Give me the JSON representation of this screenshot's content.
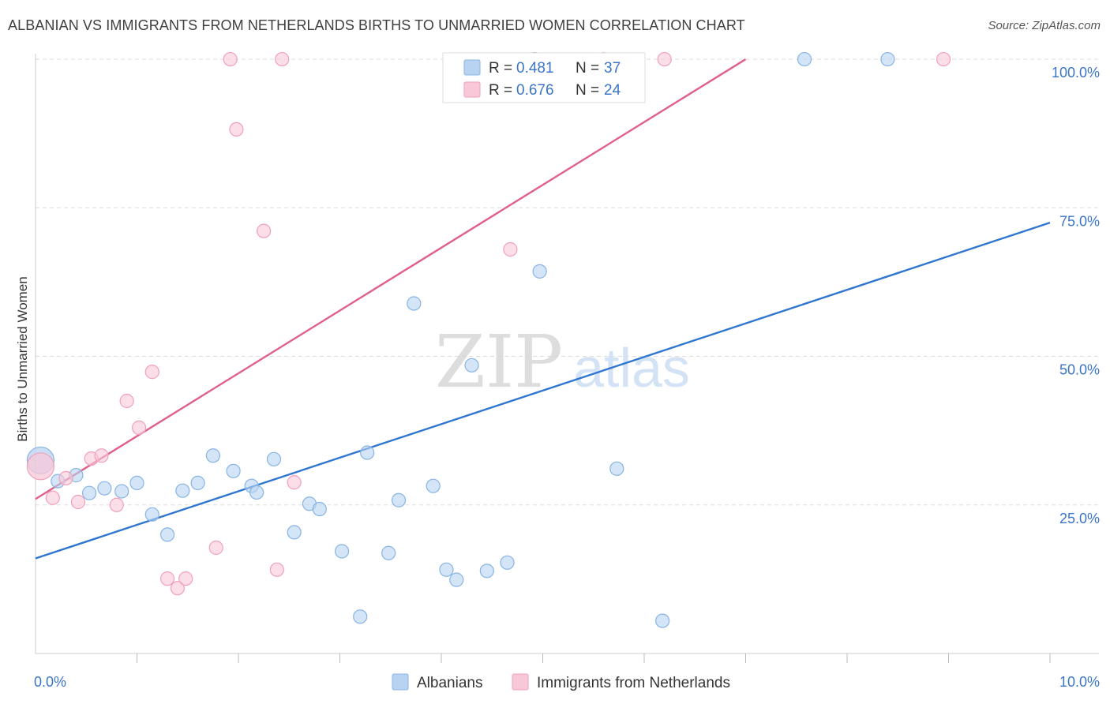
{
  "title": "ALBANIAN VS IMMIGRANTS FROM NETHERLANDS BIRTHS TO UNMARRIED WOMEN CORRELATION CHART",
  "source": "Source: ZipAtlas.com",
  "watermark": {
    "zip": "ZIP",
    "atlas": "atlas"
  },
  "colors": {
    "blue_fill": "#b8d3f2",
    "blue_stroke": "#88b4e4",
    "blue_line": "#2f76d0",
    "pink_fill": "#f8c8d8",
    "pink_stroke": "#f0a0ba",
    "pink_line": "#e0608a",
    "axis_label": "#3b75c8",
    "grid": "#dddddd",
    "text": "#333333"
  },
  "legend_stats": [
    {
      "series": "Albanians",
      "r_label": "R =",
      "r_value": "0.481",
      "n_label": "N =",
      "n_value": "37",
      "color": "blue"
    },
    {
      "series": "Immigrants from Netherlands",
      "r_label": "R =",
      "r_value": "0.676",
      "n_label": "N =",
      "n_value": "24",
      "color": "pink"
    }
  ],
  "chart_data": {
    "type": "scatter",
    "title": "ALBANIAN VS IMMIGRANTS FROM NETHERLANDS BIRTHS TO UNMARRIED WOMEN CORRELATION CHART",
    "xlabel": "",
    "ylabel": "Births to Unmarried Women",
    "xlim": [
      0,
      10
    ],
    "ylim": [
      0,
      102
    ],
    "x_tick_labels": [
      {
        "value": 0,
        "label": "0.0%"
      },
      {
        "value": 10,
        "label": "10.0%"
      }
    ],
    "y_tick_labels": [
      {
        "value": 25,
        "label": "25.0%"
      },
      {
        "value": 50,
        "label": "50.0%"
      },
      {
        "value": 75,
        "label": "75.0%"
      },
      {
        "value": 100,
        "label": "100.0%"
      }
    ],
    "y_gridlines": [
      25,
      50,
      75,
      100
    ],
    "x_minor_ticks": [
      1,
      2,
      3,
      4,
      5,
      6,
      7,
      8,
      9,
      10
    ],
    "legend_position": "bottom-center",
    "series": [
      {
        "name": "Albanians",
        "color": "blue",
        "trendline": {
          "x": [
            0,
            10
          ],
          "y": [
            16.0,
            72.5
          ]
        },
        "points": [
          {
            "x": 0.05,
            "y": 32.5,
            "large": true
          },
          {
            "x": 0.22,
            "y": 29.0
          },
          {
            "x": 0.4,
            "y": 30.0
          },
          {
            "x": 0.53,
            "y": 27.0
          },
          {
            "x": 0.68,
            "y": 27.8
          },
          {
            "x": 0.85,
            "y": 27.3
          },
          {
            "x": 1.0,
            "y": 28.7
          },
          {
            "x": 1.15,
            "y": 23.4
          },
          {
            "x": 1.3,
            "y": 20.0
          },
          {
            "x": 1.45,
            "y": 27.4
          },
          {
            "x": 1.6,
            "y": 28.7
          },
          {
            "x": 1.75,
            "y": 33.3
          },
          {
            "x": 1.95,
            "y": 30.7
          },
          {
            "x": 2.13,
            "y": 28.2
          },
          {
            "x": 2.18,
            "y": 27.1
          },
          {
            "x": 2.35,
            "y": 32.7
          },
          {
            "x": 2.55,
            "y": 20.4
          },
          {
            "x": 2.7,
            "y": 25.2
          },
          {
            "x": 2.8,
            "y": 24.3
          },
          {
            "x": 3.02,
            "y": 17.2
          },
          {
            "x": 3.2,
            "y": 6.2
          },
          {
            "x": 3.27,
            "y": 33.8
          },
          {
            "x": 3.48,
            "y": 16.9
          },
          {
            "x": 3.58,
            "y": 25.8
          },
          {
            "x": 3.73,
            "y": 58.9
          },
          {
            "x": 3.92,
            "y": 28.2
          },
          {
            "x": 4.05,
            "y": 14.1
          },
          {
            "x": 4.15,
            "y": 12.4
          },
          {
            "x": 4.3,
            "y": 48.5
          },
          {
            "x": 4.45,
            "y": 13.9
          },
          {
            "x": 4.65,
            "y": 15.3
          },
          {
            "x": 4.92,
            "y": 100.0
          },
          {
            "x": 4.97,
            "y": 64.3
          },
          {
            "x": 5.73,
            "y": 31.1
          },
          {
            "x": 6.18,
            "y": 5.5
          },
          {
            "x": 7.58,
            "y": 100.0
          },
          {
            "x": 8.4,
            "y": 100.0
          }
        ]
      },
      {
        "name": "Immigrants from Netherlands",
        "color": "pink",
        "trendline": {
          "x": [
            0,
            7.0
          ],
          "y": [
            26.0,
            100.0
          ]
        },
        "points": [
          {
            "x": 0.05,
            "y": 31.5,
            "large": true
          },
          {
            "x": 0.17,
            "y": 26.2
          },
          {
            "x": 0.3,
            "y": 29.5
          },
          {
            "x": 0.42,
            "y": 25.5
          },
          {
            "x": 0.55,
            "y": 32.8
          },
          {
            "x": 0.65,
            "y": 33.3
          },
          {
            "x": 0.8,
            "y": 25.0
          },
          {
            "x": 0.9,
            "y": 42.5
          },
          {
            "x": 1.02,
            "y": 38.0
          },
          {
            "x": 1.15,
            "y": 47.4
          },
          {
            "x": 1.3,
            "y": 12.6
          },
          {
            "x": 1.4,
            "y": 11.0
          },
          {
            "x": 1.48,
            "y": 12.6
          },
          {
            "x": 1.78,
            "y": 17.8
          },
          {
            "x": 1.92,
            "y": 100.0
          },
          {
            "x": 1.98,
            "y": 88.2
          },
          {
            "x": 2.25,
            "y": 71.1
          },
          {
            "x": 2.38,
            "y": 14.1
          },
          {
            "x": 2.43,
            "y": 100.0
          },
          {
            "x": 2.55,
            "y": 28.8
          },
          {
            "x": 4.68,
            "y": 68.0
          },
          {
            "x": 5.6,
            "y": 100.0
          },
          {
            "x": 6.2,
            "y": 100.0
          },
          {
            "x": 8.95,
            "y": 100.0
          }
        ]
      }
    ]
  }
}
